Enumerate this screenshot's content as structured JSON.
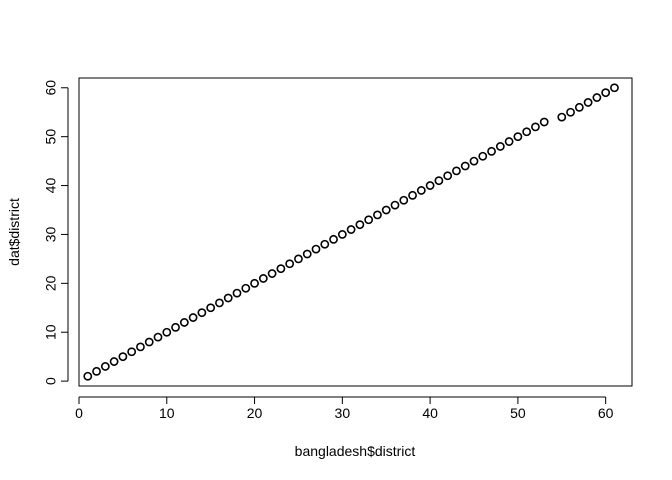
{
  "chart_data": {
    "type": "scatter",
    "xlabel": "bangladesh$district",
    "ylabel": "dat$district",
    "xlim": [
      0,
      63
    ],
    "ylim": [
      -1,
      62
    ],
    "xticks": [
      0,
      10,
      20,
      30,
      40,
      50,
      60
    ],
    "yticks": [
      0,
      10,
      20,
      30,
      40,
      50,
      60
    ],
    "marker": "open-circle",
    "point_color": "#000000",
    "points": [
      [
        1,
        1
      ],
      [
        2,
        2
      ],
      [
        3,
        3
      ],
      [
        4,
        4
      ],
      [
        5,
        5
      ],
      [
        6,
        6
      ],
      [
        7,
        7
      ],
      [
        8,
        8
      ],
      [
        9,
        9
      ],
      [
        10,
        10
      ],
      [
        11,
        11
      ],
      [
        12,
        12
      ],
      [
        13,
        13
      ],
      [
        14,
        14
      ],
      [
        15,
        15
      ],
      [
        16,
        16
      ],
      [
        17,
        17
      ],
      [
        18,
        18
      ],
      [
        19,
        19
      ],
      [
        20,
        20
      ],
      [
        21,
        21
      ],
      [
        22,
        22
      ],
      [
        23,
        23
      ],
      [
        24,
        24
      ],
      [
        25,
        25
      ],
      [
        26,
        26
      ],
      [
        27,
        27
      ],
      [
        28,
        28
      ],
      [
        29,
        29
      ],
      [
        30,
        30
      ],
      [
        31,
        31
      ],
      [
        32,
        32
      ],
      [
        33,
        33
      ],
      [
        34,
        34
      ],
      [
        35,
        35
      ],
      [
        36,
        36
      ],
      [
        37,
        37
      ],
      [
        38,
        38
      ],
      [
        39,
        39
      ],
      [
        40,
        40
      ],
      [
        41,
        41
      ],
      [
        42,
        42
      ],
      [
        43,
        43
      ],
      [
        44,
        44
      ],
      [
        45,
        45
      ],
      [
        46,
        46
      ],
      [
        47,
        47
      ],
      [
        48,
        48
      ],
      [
        49,
        49
      ],
      [
        50,
        50
      ],
      [
        51,
        51
      ],
      [
        52,
        52
      ],
      [
        53,
        53
      ],
      [
        55,
        54
      ],
      [
        56,
        55
      ],
      [
        57,
        56
      ],
      [
        58,
        57
      ],
      [
        59,
        58
      ],
      [
        60,
        59
      ],
      [
        61,
        60
      ]
    ]
  }
}
